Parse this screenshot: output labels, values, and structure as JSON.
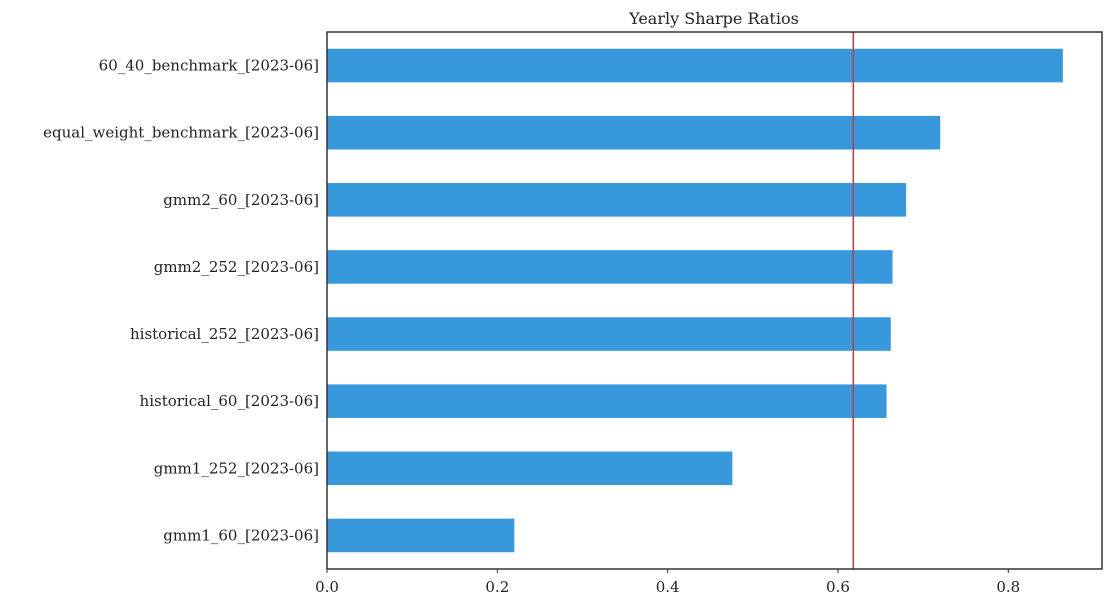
{
  "chart_data": {
    "type": "bar",
    "orientation": "horizontal",
    "title": "Yearly Sharpe Ratios",
    "xlabel": "",
    "ylabel": "",
    "categories": [
      "60_40_benchmark_[2023-06]",
      "equal_weight_benchmark_[2023-06]",
      "gmm2_60_[2023-06]",
      "gmm2_252_[2023-06]",
      "historical_252_[2023-06]",
      "historical_60_[2023-06]",
      "gmm1_252_[2023-06]",
      "gmm1_60_[2023-06]"
    ],
    "values": [
      0.864,
      0.72,
      0.68,
      0.664,
      0.662,
      0.657,
      0.476,
      0.22
    ],
    "xlim": [
      0.0,
      0.91
    ],
    "xticks": [
      0.0,
      0.2,
      0.4,
      0.6,
      0.8
    ],
    "xtick_labels": [
      "0.0",
      "0.2",
      "0.4",
      "0.6",
      "0.8"
    ],
    "reference_line": {
      "axis": "x",
      "value": 0.618,
      "color": "#c0393b"
    },
    "grid": false,
    "colors": {
      "bar": "#3798db",
      "frame": "#333333",
      "reference": "#c0393b"
    }
  }
}
